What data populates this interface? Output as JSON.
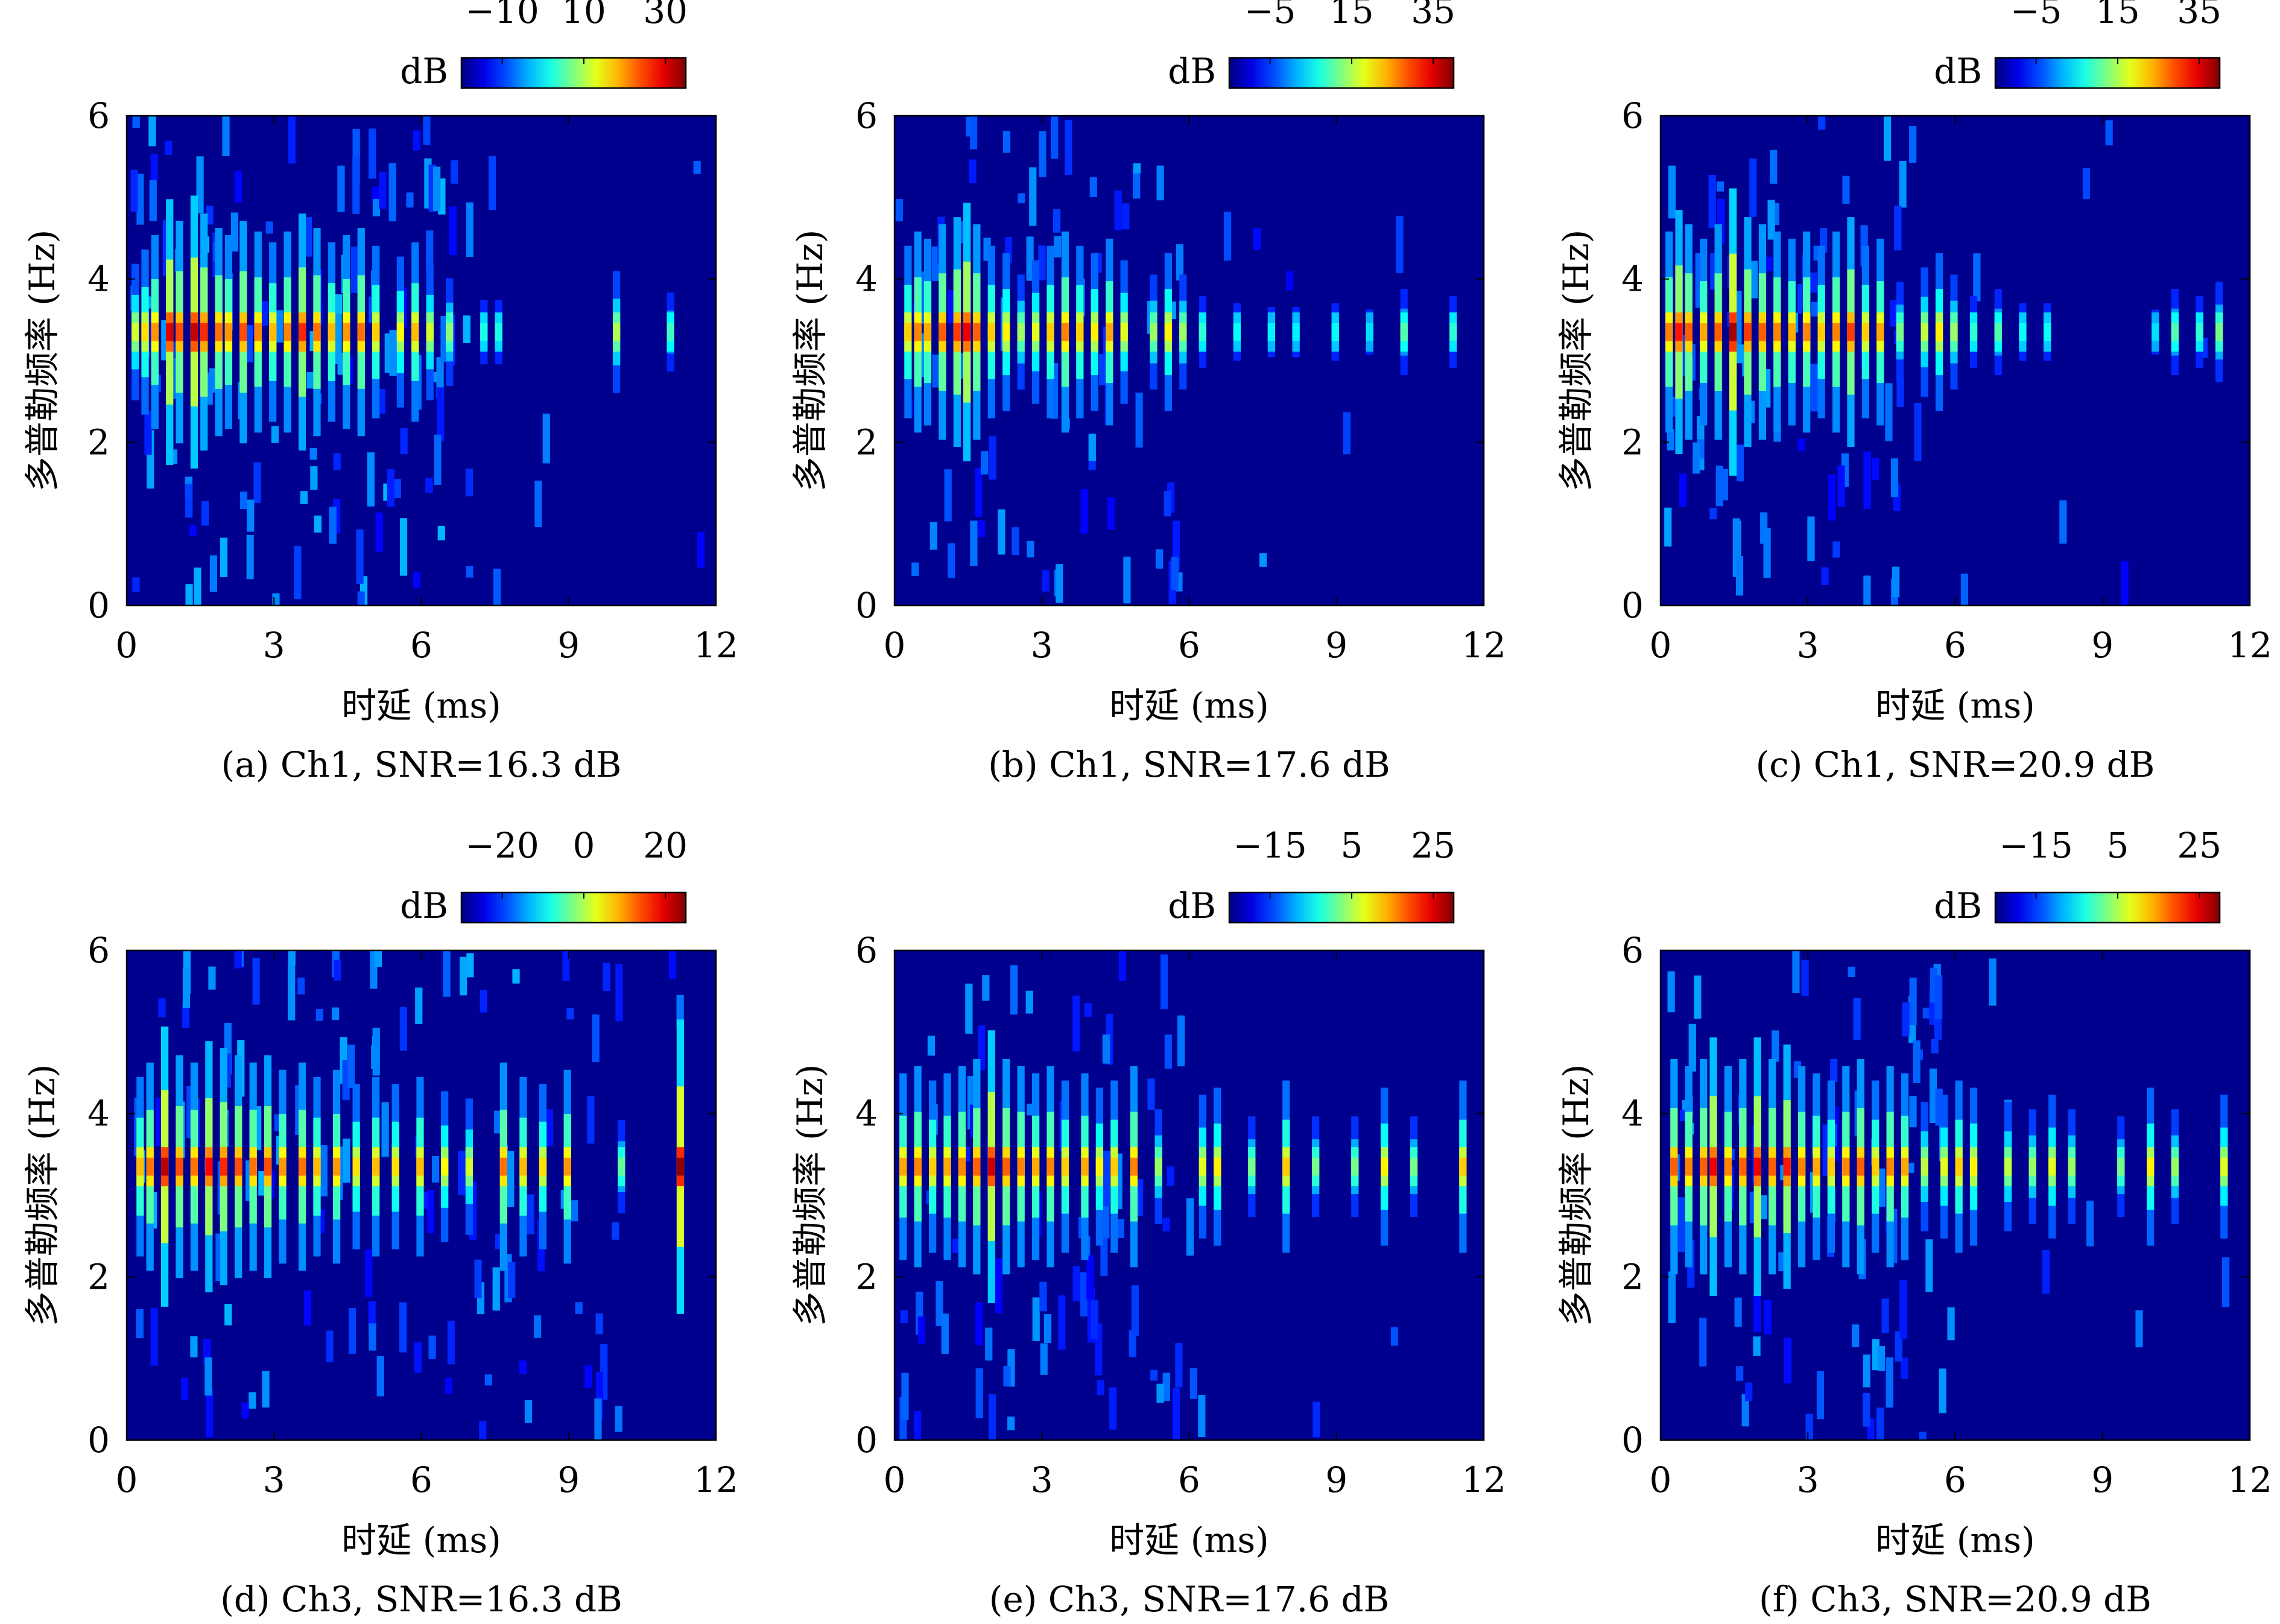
{
  "figure": {
    "x_axis_label": "时延 (ms)",
    "y_axis_label": "多普勒频率 (Hz)",
    "colorbar_unit": "dB",
    "colormap": "jet",
    "background_color": "#00008f",
    "x_ticks": [
      "0",
      "3",
      "6",
      "9",
      "12"
    ],
    "y_ticks": [
      "0",
      "2",
      "4",
      "6"
    ]
  },
  "chart_data": [
    {
      "id": "a",
      "type": "heatmap",
      "caption": "(a) Ch1, SNR=16.3 dB",
      "xlabel": "时延 (ms)",
      "ylabel": "多普勒频率 (Hz)",
      "xlim": [
        0,
        12
      ],
      "ylim": [
        0,
        6
      ],
      "colorbar": {
        "label": "dB",
        "ticks": [
          -10,
          10,
          30
        ],
        "tick_labels": [
          "−10",
          "10",
          "30"
        ],
        "range": [
          -20,
          35
        ]
      },
      "ridge_doppler_hz": 3.35,
      "noise_extent_ms": 6.6,
      "noise_level": 0.35,
      "ridge_cells": [
        {
          "delay_ms": 0.1,
          "intensity_db": 12
        },
        {
          "delay_ms": 0.3,
          "intensity_db": 16
        },
        {
          "delay_ms": 0.5,
          "intensity_db": 20
        },
        {
          "delay_ms": 0.8,
          "intensity_db": 30
        },
        {
          "delay_ms": 1.0,
          "intensity_db": 24
        },
        {
          "delay_ms": 1.3,
          "intensity_db": 31
        },
        {
          "delay_ms": 1.5,
          "intensity_db": 26
        },
        {
          "delay_ms": 1.8,
          "intensity_db": 22
        },
        {
          "delay_ms": 2.0,
          "intensity_db": 20
        },
        {
          "delay_ms": 2.3,
          "intensity_db": 24
        },
        {
          "delay_ms": 2.6,
          "intensity_db": 21
        },
        {
          "delay_ms": 2.9,
          "intensity_db": 18
        },
        {
          "delay_ms": 3.2,
          "intensity_db": 21
        },
        {
          "delay_ms": 3.5,
          "intensity_db": 26
        },
        {
          "delay_ms": 3.8,
          "intensity_db": 22
        },
        {
          "delay_ms": 4.1,
          "intensity_db": 18
        },
        {
          "delay_ms": 4.4,
          "intensity_db": 20
        },
        {
          "delay_ms": 4.7,
          "intensity_db": 22
        },
        {
          "delay_ms": 5.0,
          "intensity_db": 17
        },
        {
          "delay_ms": 5.5,
          "intensity_db": 14
        },
        {
          "delay_ms": 5.8,
          "intensity_db": 18
        },
        {
          "delay_ms": 6.1,
          "intensity_db": 12
        },
        {
          "delay_ms": 6.5,
          "intensity_db": 8
        },
        {
          "delay_ms": 7.2,
          "intensity_db": 2
        },
        {
          "delay_ms": 7.5,
          "intensity_db": 2
        },
        {
          "delay_ms": 9.9,
          "intensity_db": 10
        },
        {
          "delay_ms": 11.0,
          "intensity_db": 4
        }
      ]
    },
    {
      "id": "b",
      "type": "heatmap",
      "caption": "(b) Ch1, SNR=17.6 dB",
      "xlabel": "时延 (ms)",
      "ylabel": "多普勒频率 (Hz)",
      "xlim": [
        0,
        12
      ],
      "ylim": [
        0,
        6
      ],
      "colorbar": {
        "label": "dB",
        "ticks": [
          -5,
          15,
          35
        ],
        "tick_labels": [
          "−5",
          "15",
          "35"
        ],
        "range": [
          -15,
          40
        ]
      },
      "ridge_doppler_hz": 3.35,
      "noise_extent_ms": 5.5,
      "noise_level": 0.15,
      "ridge_cells": [
        {
          "delay_ms": 0.2,
          "intensity_db": 22
        },
        {
          "delay_ms": 0.4,
          "intensity_db": 26
        },
        {
          "delay_ms": 0.6,
          "intensity_db": 24
        },
        {
          "delay_ms": 0.9,
          "intensity_db": 28
        },
        {
          "delay_ms": 1.2,
          "intensity_db": 30
        },
        {
          "delay_ms": 1.4,
          "intensity_db": 34
        },
        {
          "delay_ms": 1.6,
          "intensity_db": 28
        },
        {
          "delay_ms": 1.9,
          "intensity_db": 22
        },
        {
          "delay_ms": 2.2,
          "intensity_db": 20
        },
        {
          "delay_ms": 2.5,
          "intensity_db": 14
        },
        {
          "delay_ms": 2.8,
          "intensity_db": 18
        },
        {
          "delay_ms": 3.1,
          "intensity_db": 22
        },
        {
          "delay_ms": 3.4,
          "intensity_db": 26
        },
        {
          "delay_ms": 3.7,
          "intensity_db": 22
        },
        {
          "delay_ms": 4.0,
          "intensity_db": 20
        },
        {
          "delay_ms": 4.3,
          "intensity_db": 24
        },
        {
          "delay_ms": 4.6,
          "intensity_db": 18
        },
        {
          "delay_ms": 5.2,
          "intensity_db": 14
        },
        {
          "delay_ms": 5.5,
          "intensity_db": 20
        },
        {
          "delay_ms": 5.8,
          "intensity_db": 14
        },
        {
          "delay_ms": 6.2,
          "intensity_db": 8
        },
        {
          "delay_ms": 6.9,
          "intensity_db": 6
        },
        {
          "delay_ms": 7.6,
          "intensity_db": 5
        },
        {
          "delay_ms": 8.1,
          "intensity_db": 5
        },
        {
          "delay_ms": 8.9,
          "intensity_db": 6
        },
        {
          "delay_ms": 9.6,
          "intensity_db": 4
        },
        {
          "delay_ms": 10.3,
          "intensity_db": 10
        },
        {
          "delay_ms": 11.3,
          "intensity_db": 8
        }
      ]
    },
    {
      "id": "c",
      "type": "heatmap",
      "caption": "(c) Ch1, SNR=20.9 dB",
      "xlabel": "时延 (ms)",
      "ylabel": "多普勒频率 (Hz)",
      "xlim": [
        0,
        12
      ],
      "ylim": [
        0,
        6
      ],
      "colorbar": {
        "label": "dB",
        "ticks": [
          -5,
          15,
          35
        ],
        "tick_labels": [
          "−5",
          "15",
          "35"
        ],
        "range": [
          -15,
          40
        ]
      },
      "ridge_doppler_hz": 3.35,
      "noise_extent_ms": 5.0,
      "noise_level": 0.18,
      "ridge_cells": [
        {
          "delay_ms": 0.1,
          "intensity_db": 26
        },
        {
          "delay_ms": 0.3,
          "intensity_db": 32
        },
        {
          "delay_ms": 0.5,
          "intensity_db": 28
        },
        {
          "delay_ms": 0.8,
          "intensity_db": 24
        },
        {
          "delay_ms": 1.1,
          "intensity_db": 28
        },
        {
          "delay_ms": 1.4,
          "intensity_db": 38
        },
        {
          "delay_ms": 1.7,
          "intensity_db": 30
        },
        {
          "delay_ms": 2.0,
          "intensity_db": 28
        },
        {
          "delay_ms": 2.3,
          "intensity_db": 26
        },
        {
          "delay_ms": 2.6,
          "intensity_db": 24
        },
        {
          "delay_ms": 2.9,
          "intensity_db": 26
        },
        {
          "delay_ms": 3.2,
          "intensity_db": 22
        },
        {
          "delay_ms": 3.5,
          "intensity_db": 26
        },
        {
          "delay_ms": 3.8,
          "intensity_db": 30
        },
        {
          "delay_ms": 4.1,
          "intensity_db": 22
        },
        {
          "delay_ms": 4.4,
          "intensity_db": 24
        },
        {
          "delay_ms": 4.8,
          "intensity_db": 12
        },
        {
          "delay_ms": 5.3,
          "intensity_db": 16
        },
        {
          "delay_ms": 5.6,
          "intensity_db": 20
        },
        {
          "delay_ms": 5.9,
          "intensity_db": 14
        },
        {
          "delay_ms": 6.3,
          "intensity_db": 8
        },
        {
          "delay_ms": 6.8,
          "intensity_db": 10
        },
        {
          "delay_ms": 7.3,
          "intensity_db": 6
        },
        {
          "delay_ms": 7.8,
          "intensity_db": 6
        },
        {
          "delay_ms": 10.0,
          "intensity_db": 4
        },
        {
          "delay_ms": 10.4,
          "intensity_db": 10
        },
        {
          "delay_ms": 10.9,
          "intensity_db": 8
        },
        {
          "delay_ms": 11.3,
          "intensity_db": 12
        }
      ]
    },
    {
      "id": "d",
      "type": "heatmap",
      "caption": "(d) Ch3, SNR=16.3 dB",
      "xlabel": "时延 (ms)",
      "ylabel": "多普勒频率 (Hz)",
      "xlim": [
        0,
        12
      ],
      "ylim": [
        0,
        6
      ],
      "colorbar": {
        "label": "dB",
        "ticks": [
          -20,
          0,
          20
        ],
        "tick_labels": [
          "−20",
          "0",
          "20"
        ],
        "range": [
          -30,
          25
        ]
      },
      "ridge_doppler_hz": 3.35,
      "noise_extent_ms": 9.5,
      "noise_level": 0.32,
      "ridge_cells": [
        {
          "delay_ms": 0.2,
          "intensity_db": 8
        },
        {
          "delay_ms": 0.4,
          "intensity_db": 12
        },
        {
          "delay_ms": 0.7,
          "intensity_db": 22
        },
        {
          "delay_ms": 1.0,
          "intensity_db": 14
        },
        {
          "delay_ms": 1.3,
          "intensity_db": 12
        },
        {
          "delay_ms": 1.6,
          "intensity_db": 18
        },
        {
          "delay_ms": 1.9,
          "intensity_db": 16
        },
        {
          "delay_ms": 2.2,
          "intensity_db": 14
        },
        {
          "delay_ms": 2.5,
          "intensity_db": 12
        },
        {
          "delay_ms": 2.8,
          "intensity_db": 14
        },
        {
          "delay_ms": 3.1,
          "intensity_db": 10
        },
        {
          "delay_ms": 3.5,
          "intensity_db": 12
        },
        {
          "delay_ms": 3.8,
          "intensity_db": 8
        },
        {
          "delay_ms": 4.2,
          "intensity_db": 10
        },
        {
          "delay_ms": 4.6,
          "intensity_db": 6
        },
        {
          "delay_ms": 5.0,
          "intensity_db": 8
        },
        {
          "delay_ms": 5.4,
          "intensity_db": 6
        },
        {
          "delay_ms": 5.9,
          "intensity_db": 8
        },
        {
          "delay_ms": 6.4,
          "intensity_db": 4
        },
        {
          "delay_ms": 6.9,
          "intensity_db": 2
        },
        {
          "delay_ms": 7.6,
          "intensity_db": 12
        },
        {
          "delay_ms": 8.0,
          "intensity_db": 8
        },
        {
          "delay_ms": 8.4,
          "intensity_db": 6
        },
        {
          "delay_ms": 8.9,
          "intensity_db": 10
        },
        {
          "delay_ms": 10.0,
          "intensity_db": -4
        },
        {
          "delay_ms": 11.2,
          "intensity_db": 24
        }
      ]
    },
    {
      "id": "e",
      "type": "heatmap",
      "caption": "(e) Ch3, SNR=17.6 dB",
      "xlabel": "时延 (ms)",
      "ylabel": "多普勒频率 (Hz)",
      "xlim": [
        0,
        12
      ],
      "ylim": [
        0,
        6
      ],
      "colorbar": {
        "label": "dB",
        "ticks": [
          -15,
          5,
          25
        ],
        "tick_labels": [
          "−15",
          "5",
          "25"
        ],
        "range": [
          -25,
          30
        ]
      },
      "ridge_doppler_hz": 3.35,
      "noise_extent_ms": 6.0,
      "noise_level": 0.14,
      "ridge_cells": [
        {
          "delay_ms": 0.1,
          "intensity_db": 14
        },
        {
          "delay_ms": 0.4,
          "intensity_db": 16
        },
        {
          "delay_ms": 0.7,
          "intensity_db": 12
        },
        {
          "delay_ms": 1.0,
          "intensity_db": 14
        },
        {
          "delay_ms": 1.3,
          "intensity_db": 16
        },
        {
          "delay_ms": 1.6,
          "intensity_db": 18
        },
        {
          "delay_ms": 1.9,
          "intensity_db": 26
        },
        {
          "delay_ms": 2.2,
          "intensity_db": 18
        },
        {
          "delay_ms": 2.5,
          "intensity_db": 16
        },
        {
          "delay_ms": 2.8,
          "intensity_db": 14
        },
        {
          "delay_ms": 3.1,
          "intensity_db": 16
        },
        {
          "delay_ms": 3.4,
          "intensity_db": 12
        },
        {
          "delay_ms": 3.8,
          "intensity_db": 14
        },
        {
          "delay_ms": 4.1,
          "intensity_db": 10
        },
        {
          "delay_ms": 4.4,
          "intensity_db": 12
        },
        {
          "delay_ms": 4.8,
          "intensity_db": 16
        },
        {
          "delay_ms": 5.3,
          "intensity_db": 4
        },
        {
          "delay_ms": 6.2,
          "intensity_db": 8
        },
        {
          "delay_ms": 6.5,
          "intensity_db": 10
        },
        {
          "delay_ms": 7.2,
          "intensity_db": 2
        },
        {
          "delay_ms": 7.9,
          "intensity_db": 12
        },
        {
          "delay_ms": 8.5,
          "intensity_db": 2
        },
        {
          "delay_ms": 9.3,
          "intensity_db": 2
        },
        {
          "delay_ms": 9.9,
          "intensity_db": 10
        },
        {
          "delay_ms": 10.5,
          "intensity_db": 2
        },
        {
          "delay_ms": 11.5,
          "intensity_db": 12
        }
      ]
    },
    {
      "id": "f",
      "type": "heatmap",
      "caption": "(f) Ch3, SNR=20.9 dB",
      "xlabel": "时延 (ms)",
      "ylabel": "多普勒频率 (Hz)",
      "xlim": [
        0,
        12
      ],
      "ylim": [
        0,
        6
      ],
      "colorbar": {
        "label": "dB",
        "ticks": [
          -15,
          5,
          25
        ],
        "tick_labels": [
          "−15",
          "5",
          "25"
        ],
        "range": [
          -25,
          30
        ]
      },
      "ridge_doppler_hz": 3.35,
      "noise_extent_ms": 5.5,
      "noise_level": 0.2,
      "ridge_cells": [
        {
          "delay_ms": 0.2,
          "intensity_db": 18
        },
        {
          "delay_ms": 0.5,
          "intensity_db": 16
        },
        {
          "delay_ms": 0.8,
          "intensity_db": 18
        },
        {
          "delay_ms": 1.0,
          "intensity_db": 24
        },
        {
          "delay_ms": 1.3,
          "intensity_db": 16
        },
        {
          "delay_ms": 1.6,
          "intensity_db": 18
        },
        {
          "delay_ms": 1.9,
          "intensity_db": 24
        },
        {
          "delay_ms": 2.2,
          "intensity_db": 18
        },
        {
          "delay_ms": 2.5,
          "intensity_db": 22
        },
        {
          "delay_ms": 2.8,
          "intensity_db": 16
        },
        {
          "delay_ms": 3.1,
          "intensity_db": 14
        },
        {
          "delay_ms": 3.4,
          "intensity_db": 12
        },
        {
          "delay_ms": 3.7,
          "intensity_db": 16
        },
        {
          "delay_ms": 4.0,
          "intensity_db": 18
        },
        {
          "delay_ms": 4.3,
          "intensity_db": 12
        },
        {
          "delay_ms": 4.6,
          "intensity_db": 16
        },
        {
          "delay_ms": 4.9,
          "intensity_db": 14
        },
        {
          "delay_ms": 5.3,
          "intensity_db": 6
        },
        {
          "delay_ms": 5.7,
          "intensity_db": 8
        },
        {
          "delay_ms": 6.0,
          "intensity_db": 12
        },
        {
          "delay_ms": 6.3,
          "intensity_db": 10
        },
        {
          "delay_ms": 7.0,
          "intensity_db": 6
        },
        {
          "delay_ms": 7.5,
          "intensity_db": 4
        },
        {
          "delay_ms": 7.9,
          "intensity_db": 8
        },
        {
          "delay_ms": 8.3,
          "intensity_db": 4
        },
        {
          "delay_ms": 9.3,
          "intensity_db": 2
        },
        {
          "delay_ms": 9.9,
          "intensity_db": 10
        },
        {
          "delay_ms": 10.4,
          "intensity_db": 4
        },
        {
          "delay_ms": 11.4,
          "intensity_db": 8
        }
      ]
    }
  ]
}
